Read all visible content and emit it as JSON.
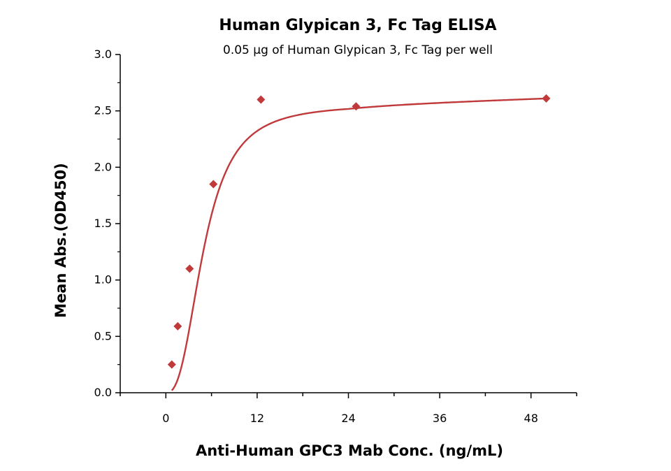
{
  "chart_data": {
    "type": "scatter",
    "title": "Human Glypican 3, Fc Tag ELISA",
    "subtitle": "0.05 µg of Human Glypican 3, Fc Tag per well",
    "xlabel": "Anti-Human GPC3 Mab Conc. (ng/mL)",
    "ylabel": "Mean Abs.(OD450)",
    "xlim": [
      -6,
      54
    ],
    "ylim": [
      0,
      3.0
    ],
    "x_ticks": [
      0,
      12,
      24,
      36,
      48
    ],
    "y_ticks": [
      0.0,
      0.5,
      1.0,
      1.5,
      2.0,
      2.5,
      3.0
    ],
    "x_tick_labels": [
      "0",
      "12",
      "24",
      "36",
      "48"
    ],
    "y_tick_labels": [
      "0.0",
      "0.5",
      "1.0",
      "1.5",
      "2.0",
      "2.5",
      "3.0"
    ],
    "color": "#c0393b",
    "marker": "diamond",
    "grid": false,
    "series": [
      {
        "x": [
          0.781,
          1.563,
          3.125,
          6.25,
          12.5,
          25,
          50
        ],
        "y": [
          0.25,
          0.59,
          1.1,
          1.85,
          2.6,
          2.54,
          2.61
        ]
      }
    ],
    "fit_curve": {
      "type": "4PL",
      "bottom": 0.0,
      "top": 2.56,
      "ec50": 5.0,
      "hill": 2.6
    }
  }
}
